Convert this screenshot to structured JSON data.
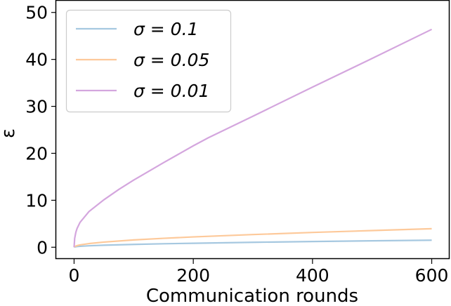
{
  "chart_data": {
    "type": "line",
    "title": "",
    "xlabel": "Communication rounds",
    "ylabel": "ε",
    "xlim": [
      -30,
      630
    ],
    "ylim": [
      -2.5,
      52.5
    ],
    "xticks": [
      0,
      200,
      400,
      600
    ],
    "yticks": [
      0,
      10,
      20,
      30,
      40,
      50
    ],
    "grid": false,
    "legend_position": "upper-left",
    "series": [
      {
        "name": "σ = 0.1",
        "color": "#a6c8e0",
        "x": [
          0,
          1,
          5,
          10,
          25,
          50,
          100,
          150,
          200,
          300,
          400,
          500,
          600
        ],
        "y": [
          0,
          0.06,
          0.14,
          0.2,
          0.31,
          0.43,
          0.6,
          0.74,
          0.85,
          1.05,
          1.22,
          1.37,
          1.5
        ]
      },
      {
        "name": "σ = 0.05",
        "color": "#fdc99a",
        "x": [
          0,
          1,
          5,
          10,
          25,
          50,
          100,
          150,
          200,
          300,
          400,
          500,
          600
        ],
        "y": [
          0,
          0.15,
          0.35,
          0.5,
          0.78,
          1.1,
          1.55,
          1.9,
          2.2,
          2.7,
          3.15,
          3.55,
          3.95
        ]
      },
      {
        "name": "σ = 0.01",
        "color": "#d4a6de",
        "x": [
          0,
          1,
          3,
          5,
          10,
          25,
          50,
          75,
          100,
          150,
          200,
          225,
          300,
          400,
          500,
          600
        ],
        "y": [
          0,
          1.9,
          3.2,
          4.0,
          5.3,
          7.6,
          10.1,
          12.3,
          14.3,
          18.0,
          21.6,
          23.3,
          27.9,
          34.1,
          40.2,
          46.4
        ]
      }
    ]
  }
}
